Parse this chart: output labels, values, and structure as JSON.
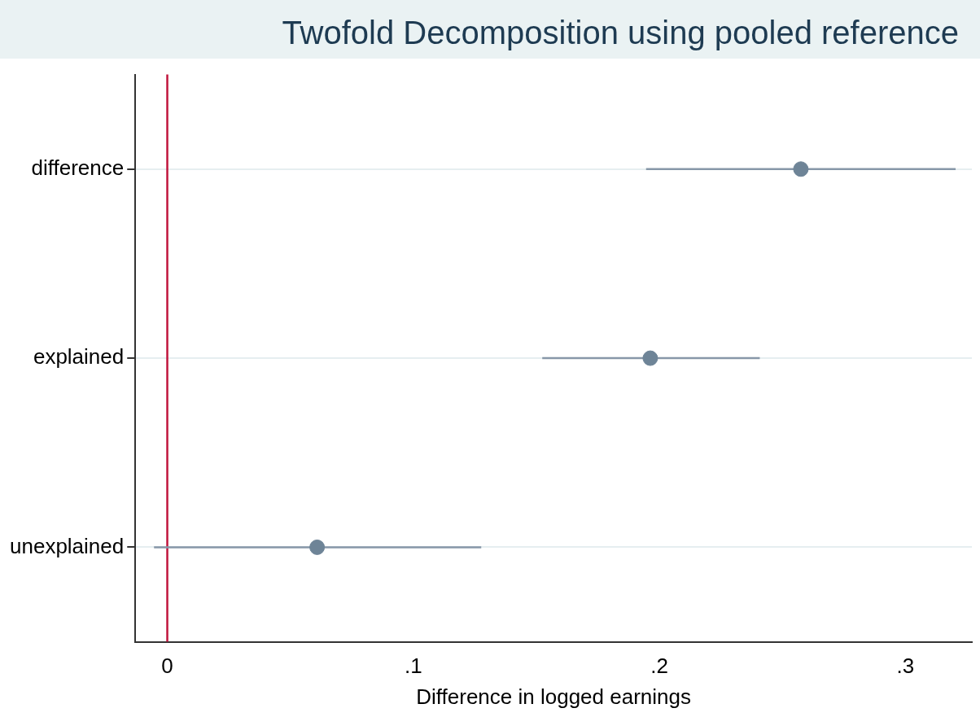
{
  "chart_data": {
    "type": "scatter",
    "orientation": "horizontal",
    "title": "Twofold Decomposition using pooled reference",
    "xlabel": "Difference in logged earnings",
    "categories": [
      "difference",
      "explained",
      "unexplained"
    ],
    "values": [
      0.2575,
      0.1963,
      0.0609
    ],
    "errors": [
      [
        0.1946,
        0.3204
      ],
      [
        0.1524,
        0.2408
      ],
      [
        -0.0054,
        0.1276
      ]
    ],
    "color": "#6e8497",
    "marker": "circle",
    "xlim": [
      -0.013,
      0.327
    ],
    "xticks": [
      {
        "value": 0,
        "label": "0"
      },
      {
        "value": 0.1,
        "label": ".1"
      },
      {
        "value": 0.2,
        "label": ".2"
      },
      {
        "value": 0.3,
        "label": ".3"
      }
    ],
    "ref_lines": [
      {
        "axis": "x",
        "value": 0,
        "color": "#c0143c"
      }
    ],
    "grid": "y",
    "legend": false
  }
}
